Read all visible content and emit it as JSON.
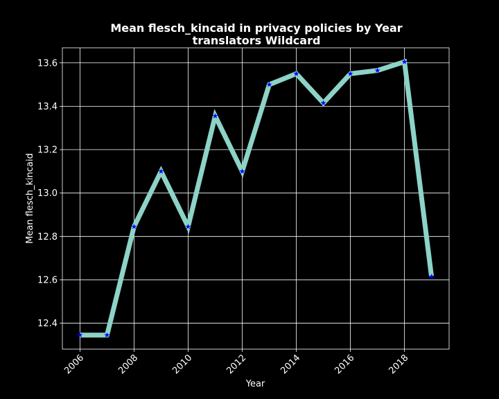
{
  "chart_data": {
    "type": "line",
    "title": "Mean flesch_kincaid in privacy policies by Year",
    "subtitle": "translators Wildcard",
    "xlabel": "Year",
    "ylabel": "Mean flesch_kincaid",
    "x": [
      2006,
      2007,
      2008,
      2009,
      2010,
      2011,
      2012,
      2013,
      2014,
      2015,
      2016,
      2017,
      2018,
      2019
    ],
    "y": [
      12.345,
      12.345,
      12.845,
      13.1,
      12.845,
      13.355,
      13.1,
      13.5,
      13.55,
      13.415,
      13.55,
      13.565,
      13.605,
      12.615
    ],
    "xticks": [
      "2006",
      "2008",
      "2010",
      "2012",
      "2014",
      "2016",
      "2018"
    ],
    "yticks": [
      "12.4",
      "12.6",
      "12.8",
      "13.0",
      "13.2",
      "13.4",
      "13.6"
    ],
    "xlim": [
      2005.35,
      2019.65
    ],
    "ylim": [
      12.2805,
      13.6695
    ],
    "grid": true,
    "background": "#000000",
    "line_color": "#8dd3c7",
    "marker_color": "#0000ff",
    "marker": "star",
    "axis_color": "#ffffff",
    "grid_color": "#ffffff"
  }
}
